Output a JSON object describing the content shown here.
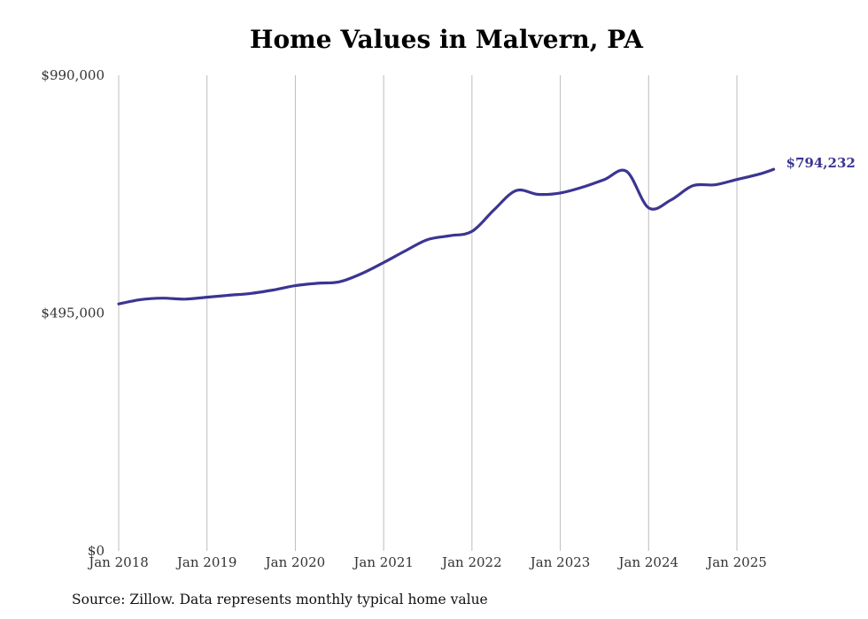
{
  "chart_data": {
    "type": "line",
    "title": "Home Values in Malvern, PA",
    "source": "Source: Zillow. Data represents monthly typical home value",
    "xlabel": "",
    "ylabel": "",
    "ylim": [
      0,
      990000
    ],
    "y_ticks": [
      {
        "value": 0,
        "label": "$0"
      },
      {
        "value": 495000,
        "label": "$495,000"
      },
      {
        "value": 990000,
        "label": "$990,000"
      }
    ],
    "x_ticks": [
      {
        "date": "2018-01",
        "label": "Jan 2018"
      },
      {
        "date": "2019-01",
        "label": "Jan 2019"
      },
      {
        "date": "2020-01",
        "label": "Jan 2020"
      },
      {
        "date": "2021-01",
        "label": "Jan 2021"
      },
      {
        "date": "2022-01",
        "label": "Jan 2022"
      },
      {
        "date": "2023-01",
        "label": "Jan 2023"
      },
      {
        "date": "2024-01",
        "label": "Jan 2024"
      },
      {
        "date": "2025-01",
        "label": "Jan 2025"
      }
    ],
    "grid": "vertical",
    "line_color": "#3b3592",
    "end_label": "$794,232",
    "series": [
      {
        "x": [
          "2018-01",
          "2018-04",
          "2018-07",
          "2018-10",
          "2019-01",
          "2019-04",
          "2019-07",
          "2019-10",
          "2020-01",
          "2020-04",
          "2020-07",
          "2020-10",
          "2021-01",
          "2021-04",
          "2021-07",
          "2021-10",
          "2022-01",
          "2022-04",
          "2022-07",
          "2022-10",
          "2023-01",
          "2023-04",
          "2023-07",
          "2023-10",
          "2024-01",
          "2024-04",
          "2024-07",
          "2024-10",
          "2025-01",
          "2025-04",
          "2025-06"
        ],
        "y": [
          514000,
          523000,
          526000,
          524000,
          528000,
          532000,
          536000,
          543000,
          552000,
          557000,
          560000,
          577000,
          600000,
          625000,
          648000,
          656000,
          665000,
          710000,
          750000,
          742000,
          745000,
          757000,
          773000,
          790000,
          714000,
          730000,
          760000,
          762000,
          773000,
          784000,
          794232
        ]
      }
    ]
  }
}
